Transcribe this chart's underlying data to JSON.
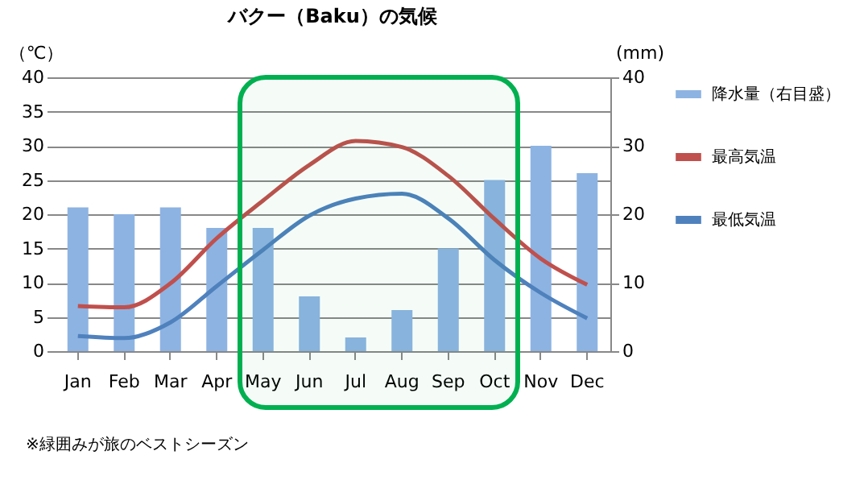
{
  "chart_data": {
    "type": "line",
    "title": "バクー（Baku）の気候",
    "ylabel": "（℃）",
    "y2label": "(mm)",
    "categories": [
      "Jan",
      "Feb",
      "Mar",
      "Apr",
      "May",
      "Jun",
      "Jul",
      "Aug",
      "Sep",
      "Oct",
      "Nov",
      "Dec"
    ],
    "series": [
      {
        "name": "降水量（右目盛）",
        "type": "bar",
        "axis": "y2",
        "color": "#8db3e2",
        "values": [
          21,
          20,
          21,
          18,
          18,
          8,
          2,
          6,
          15,
          25,
          30,
          26
        ]
      },
      {
        "name": "最高気温",
        "color": "#c0504d",
        "values": [
          6.6,
          6.4,
          9.9,
          16.5,
          22.0,
          27.2,
          30.7,
          29.8,
          25.6,
          19.3,
          13.5,
          9.7
        ]
      },
      {
        "name": "最低気温",
        "color": "#4f81bd",
        "values": [
          2.2,
          1.9,
          4.2,
          9.5,
          14.8,
          19.8,
          22.3,
          23.0,
          19.4,
          13.3,
          8.5,
          4.8
        ]
      }
    ],
    "ylim": [
      0,
      40
    ],
    "yticks": [
      0,
      5,
      10,
      15,
      20,
      25,
      30,
      35,
      40
    ],
    "y2lim": [
      0,
      40
    ],
    "y2ticks": [
      0,
      10,
      20,
      30,
      40
    ],
    "bands": [
      {
        "axis": "x",
        "from": "May",
        "to": "Oct",
        "color": "#00b050"
      }
    ],
    "annotations": [
      "※緑囲みが旅のベストシーズン"
    ],
    "grid": "y",
    "legend": "right",
    "marker": "none",
    "line_style": "solid"
  }
}
